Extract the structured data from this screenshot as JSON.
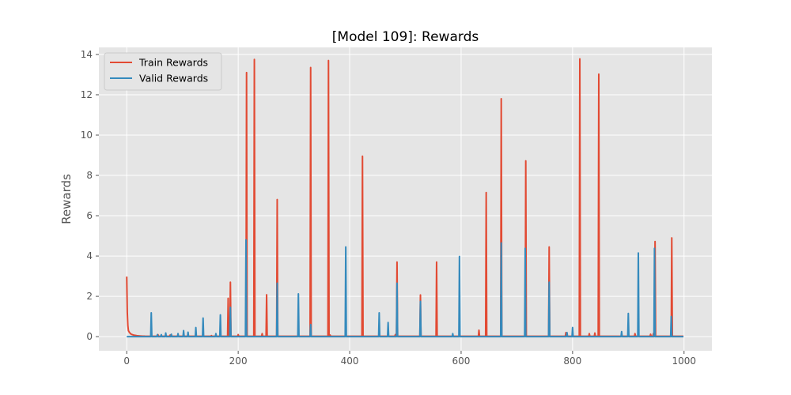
{
  "chart_data": {
    "type": "line",
    "title": "[Model 109]: Rewards",
    "xlabel": "",
    "ylabel": "Rewards",
    "xlim": [
      -50,
      1050
    ],
    "ylim": [
      -0.7,
      14.35
    ],
    "xticks": [
      0,
      200,
      400,
      600,
      800,
      1000
    ],
    "yticks": [
      0,
      2,
      4,
      6,
      8,
      10,
      12,
      14
    ],
    "grid": true,
    "legend_position": "top-left",
    "style": {
      "background": "#E5E5E5",
      "grid": "#FFFFFF"
    },
    "series": [
      {
        "name": "Train Rewards",
        "color": "#E24A33",
        "baseline": 0.02,
        "start": [
          [
            0,
            2.98
          ],
          [
            1,
            1.2
          ],
          [
            2,
            0.55
          ],
          [
            3,
            0.3
          ],
          [
            5,
            0.2
          ],
          [
            8,
            0.12
          ],
          [
            12,
            0.08
          ],
          [
            18,
            0.05
          ],
          [
            25,
            0.03
          ],
          [
            35,
            0.02
          ]
        ],
        "spikes": [
          [
            182,
            1.9
          ],
          [
            186,
            2.7
          ],
          [
            215,
            13.1
          ],
          [
            229,
            13.75
          ],
          [
            251,
            2.08
          ],
          [
            270,
            6.8
          ],
          [
            330,
            13.35
          ],
          [
            362,
            13.7
          ],
          [
            423,
            8.95
          ],
          [
            485,
            3.7
          ],
          [
            527,
            2.07
          ],
          [
            556,
            3.7
          ],
          [
            632,
            0.32
          ],
          [
            645,
            7.15
          ],
          [
            672,
            11.8
          ],
          [
            716,
            8.72
          ],
          [
            758,
            4.45
          ],
          [
            813,
            13.78
          ],
          [
            847,
            13.02
          ],
          [
            948,
            4.72
          ],
          [
            978,
            4.9
          ],
          [
            56,
            0.1
          ],
          [
            78,
            0.08
          ],
          [
            110,
            0.06
          ],
          [
            152,
            0.05
          ],
          [
            200,
            0.1
          ],
          [
            243,
            0.15
          ],
          [
            365,
            0.08
          ],
          [
            482,
            0.1
          ],
          [
            788,
            0.2
          ],
          [
            830,
            0.15
          ],
          [
            840,
            0.18
          ],
          [
            912,
            0.15
          ],
          [
            940,
            0.12
          ],
          [
            945,
            0.15
          ]
        ]
      },
      {
        "name": "Valid Rewards",
        "color": "#348ABD",
        "baseline": 0.0,
        "start": [],
        "spikes": [
          [
            44,
            1.18
          ],
          [
            55,
            0.1
          ],
          [
            62,
            0.1
          ],
          [
            70,
            0.18
          ],
          [
            80,
            0.12
          ],
          [
            92,
            0.15
          ],
          [
            102,
            0.3
          ],
          [
            110,
            0.22
          ],
          [
            124,
            0.45
          ],
          [
            137,
            0.92
          ],
          [
            160,
            0.15
          ],
          [
            168,
            1.08
          ],
          [
            186,
            1.45
          ],
          [
            214,
            4.8
          ],
          [
            270,
            2.65
          ],
          [
            308,
            2.12
          ],
          [
            330,
            0.6
          ],
          [
            393,
            4.45
          ],
          [
            453,
            1.18
          ],
          [
            469,
            0.7
          ],
          [
            485,
            2.65
          ],
          [
            527,
            1.75
          ],
          [
            585,
            0.15
          ],
          [
            597,
            3.98
          ],
          [
            672,
            4.65
          ],
          [
            715,
            4.38
          ],
          [
            758,
            2.7
          ],
          [
            790,
            0.2
          ],
          [
            800,
            0.45
          ],
          [
            888,
            0.25
          ],
          [
            900,
            1.15
          ],
          [
            918,
            4.15
          ],
          [
            947,
            4.38
          ],
          [
            977,
            1.0
          ]
        ]
      }
    ]
  }
}
